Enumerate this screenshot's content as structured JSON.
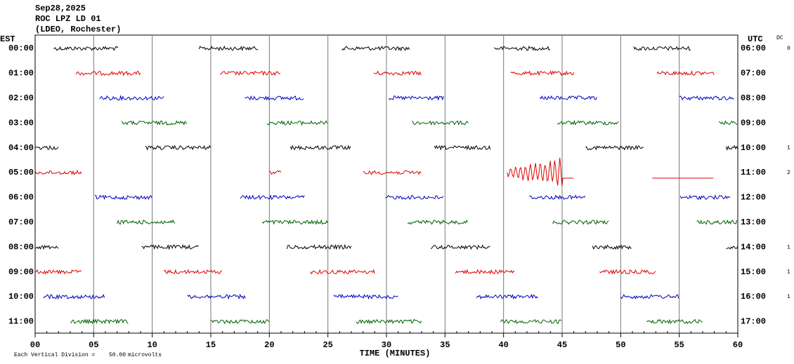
{
  "chart_data": {
    "type": "helicorder",
    "title": "Sep28,2025",
    "subtitle": "ROC LPZ LD 01",
    "source": "(LDEO, Rochester)",
    "left_zone": "EST",
    "right_zone": "UTC",
    "dc_header": "DC",
    "x_label": "TIME (MINUTES)",
    "scale_label": "Each Vertical Division =",
    "scale": {
      "value": 50,
      "label": "50.00"
    },
    "scale_unit": "microvolts",
    "noise_amplitude": 4,
    "xlim": [
      0,
      60
    ],
    "xticks": [
      {
        "value": 0,
        "label": "00"
      },
      {
        "value": 5,
        "label": "05"
      },
      10,
      15,
      20,
      25,
      30,
      35,
      40,
      45,
      50,
      55,
      60
    ],
    "grid": true,
    "rows": [
      {
        "est": "00:00",
        "utc": "06:00",
        "dc": 0,
        "color": "#000000",
        "segments": [
          [
            1.6,
            7.1
          ],
          [
            14.0,
            19.1
          ],
          [
            26.2,
            32.0
          ],
          [
            39.2,
            44.0
          ],
          [
            51.1,
            56.0
          ]
        ]
      },
      {
        "est": "01:00",
        "utc": "07:00",
        "dc": null,
        "color": "#e00000",
        "segments": [
          [
            3.5,
            9.0
          ],
          [
            15.8,
            21.0
          ],
          [
            28.9,
            33.0
          ],
          [
            40.6,
            46.0
          ],
          [
            53.1,
            58.0
          ]
        ]
      },
      {
        "est": "02:00",
        "utc": "08:00",
        "dc": null,
        "color": "#0000c0",
        "segments": [
          [
            5.5,
            11.0
          ],
          [
            17.9,
            23.0
          ],
          [
            30.2,
            34.9
          ],
          [
            43.1,
            48.0
          ],
          [
            55.0,
            59.7
          ]
        ]
      },
      {
        "est": "03:00",
        "utc": "09:00",
        "dc": null,
        "color": "#006000",
        "segments": [
          [
            7.4,
            13.0
          ],
          [
            19.8,
            25.0
          ],
          [
            32.2,
            37.0
          ],
          [
            44.6,
            49.9
          ],
          [
            58.4,
            60
          ]
        ]
      },
      {
        "est": "04:00",
        "utc": "10:00",
        "dc": 1,
        "color": "#000000",
        "segments": [
          [
            0,
            2.0
          ],
          [
            9.4,
            15.0
          ],
          [
            21.8,
            27.0
          ],
          [
            34.1,
            38.9
          ],
          [
            47.0,
            52.0
          ],
          [
            59,
            60
          ]
        ]
      },
      {
        "est": "05:00",
        "utc": "11:00",
        "dc": 2,
        "color": "#e00000",
        "segments": [
          [
            0,
            4.0
          ],
          [
            20.0,
            21.0
          ],
          [
            28.0,
            33.0
          ],
          [
            40.3,
            46.0
          ],
          [
            52.7,
            58.0
          ]
        ],
        "event": {
          "start": 40.3,
          "end": 45.0,
          "amplitude": 31
        }
      },
      {
        "est": "06:00",
        "utc": "12:00",
        "dc": null,
        "color": "#0000c0",
        "segments": [
          [
            5.1,
            10.0
          ],
          [
            17.5,
            23.0
          ],
          [
            29.9,
            34.9
          ],
          [
            42.2,
            47.0
          ],
          [
            55.1,
            59.4
          ]
        ]
      },
      {
        "est": "07:00",
        "utc": "13:00",
        "dc": null,
        "color": "#006000",
        "segments": [
          [
            7.0,
            12.0
          ],
          [
            19.4,
            25.0
          ],
          [
            31.8,
            37.0
          ],
          [
            44.2,
            49.0
          ],
          [
            56.5,
            60
          ]
        ]
      },
      {
        "est": "08:00",
        "utc": "14:00",
        "dc": 1,
        "color": "#000000",
        "segments": [
          [
            0,
            2.0
          ],
          [
            9.1,
            14.0
          ],
          [
            21.5,
            27.0
          ],
          [
            33.8,
            38.9
          ],
          [
            47.6,
            51.0
          ],
          [
            59,
            60
          ]
        ]
      },
      {
        "est": "09:00",
        "utc": "15:00",
        "dc": 1,
        "color": "#e00000",
        "segments": [
          [
            0,
            4.0
          ],
          [
            11.0,
            16.0
          ],
          [
            23.5,
            29.0
          ],
          [
            35.9,
            41.0
          ],
          [
            48.2,
            53.0
          ]
        ]
      },
      {
        "est": "10:00",
        "utc": "16:00",
        "dc": 1,
        "color": "#0000c0",
        "segments": [
          [
            0.7,
            6.0
          ],
          [
            13.0,
            18.0
          ],
          [
            25.5,
            31.0
          ],
          [
            37.7,
            43.0
          ],
          [
            50.0,
            55.0
          ]
        ]
      },
      {
        "est": "11:00",
        "utc": "17:00",
        "dc": null,
        "color": "#006000",
        "segments": [
          [
            3.0,
            8.0
          ],
          [
            15.0,
            20.0
          ],
          [
            27.4,
            33.0
          ],
          [
            39.7,
            45.0
          ],
          [
            52.2,
            57.0
          ]
        ]
      }
    ]
  }
}
